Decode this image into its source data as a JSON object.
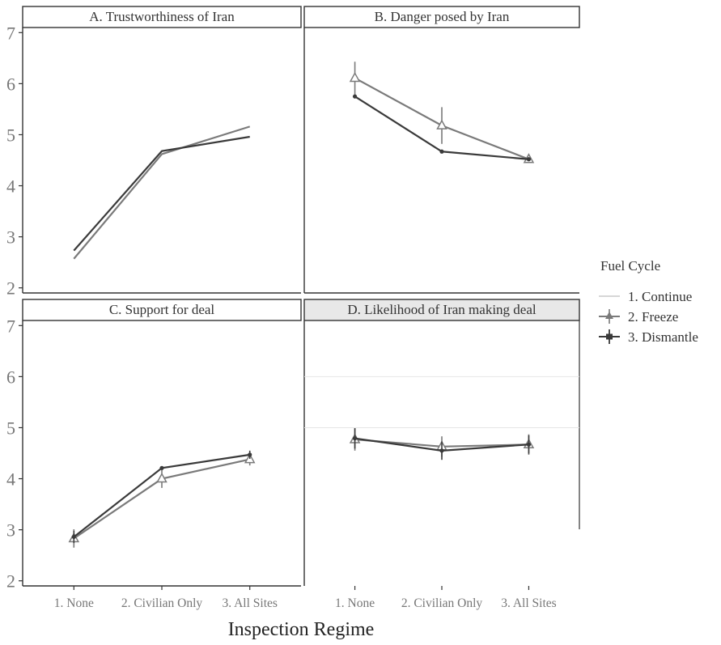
{
  "chart_data": {
    "type": "line",
    "xlabel": "Inspection Regime",
    "categories": [
      "1. None",
      "2. Civilian Only",
      "3. All Sites"
    ],
    "ylim": [
      1.9,
      7.1
    ],
    "yticks": [
      2,
      3,
      4,
      5,
      6,
      7
    ],
    "legend": {
      "title": "Fuel Cycle",
      "position": "right",
      "entries": [
        "1. Continue",
        "2. Freeze",
        "3. Dismantle"
      ]
    },
    "colors": {
      "continue": "#d6d6d6",
      "freeze": "#7a7a7a",
      "dismantle": "#3a3a3a",
      "strip_fill": "#ffffff",
      "strip_fill_faded": "#e8e8e8"
    },
    "panels": [
      {
        "title": "A. Trustworthiness of Iran",
        "series": [
          {
            "name": "2. Freeze",
            "values": [
              2.57,
              4.62,
              5.16
            ],
            "errors": [
              0,
              0,
              0
            ]
          },
          {
            "name": "3. Dismantle",
            "values": [
              2.73,
              4.68,
              4.96
            ],
            "errors": [
              0,
              0,
              0
            ]
          }
        ]
      },
      {
        "title": "B. Danger posed by Iran",
        "series": [
          {
            "name": "2. Freeze",
            "values": [
              6.11,
              5.18,
              4.52
            ],
            "errors": [
              0.32,
              0.36,
              0
            ]
          },
          {
            "name": "3. Dismantle",
            "values": [
              5.75,
              4.67,
              4.52
            ],
            "errors": [
              0,
              0,
              0
            ]
          }
        ]
      },
      {
        "title": "C. Support for deal",
        "series": [
          {
            "name": "2. Freeze",
            "values": [
              2.83,
              4.0,
              4.38
            ],
            "errors": [
              0.18,
              0.18,
              0.12
            ]
          },
          {
            "name": "3. Dismantle",
            "values": [
              2.86,
              4.21,
              4.47
            ],
            "errors": [
              0.12,
              0,
              0.08
            ]
          }
        ]
      },
      {
        "title": "D. Likelihood of Iran making deal",
        "series": [
          {
            "name": "2. Freeze",
            "values": [
              4.77,
              4.63,
              4.67
            ],
            "errors": [
              0.22,
              0.2,
              0.2
            ]
          },
          {
            "name": "3. Dismantle",
            "values": [
              4.79,
              4.55,
              4.67
            ],
            "errors": [
              0.2,
              0.18,
              0.18
            ]
          }
        ]
      }
    ]
  }
}
